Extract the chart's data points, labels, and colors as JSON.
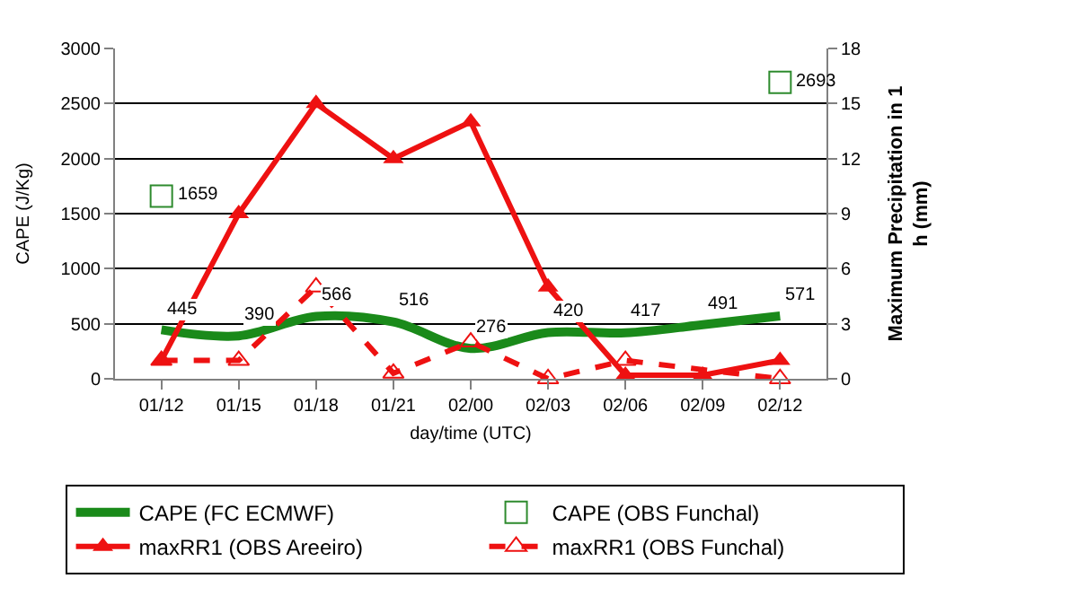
{
  "chart_data": {
    "type": "line",
    "xlabel": "day/time (UTC)",
    "ylabel": "CAPE (J/Kg)",
    "y2label": "Maximum Precipitation in 1 h (mm)",
    "categories": [
      "01/12",
      "01/15",
      "01/18",
      "01/21",
      "02/00",
      "02/03",
      "02/06",
      "02/09",
      "02/12"
    ],
    "series": [
      {
        "name": "CAPE (FC ECMWF)",
        "color": "#1a8a1a",
        "marker": "none",
        "line_style": "solid",
        "values": [
          445,
          390,
          566,
          516,
          276,
          420,
          417,
          491,
          571
        ],
        "value_labels": [
          "445",
          "390",
          "566",
          "516",
          "276",
          "420",
          "417",
          "491",
          "571"
        ]
      },
      {
        "name": "CAPE (OBS Funchal)",
        "type": "scatter",
        "color": "#2e8b2e",
        "marker": "square",
        "values": [
          1659,
          null,
          null,
          null,
          null,
          null,
          null,
          null,
          2693
        ],
        "value_labels": [
          "1659",
          null,
          null,
          null,
          null,
          null,
          null,
          null,
          "2693"
        ]
      },
      {
        "name": "maxRR1 (OBS Areeiro)",
        "axis": "y2",
        "color": "#ee1111",
        "marker": "triangle",
        "line_style": "solid",
        "values": [
          1,
          9,
          15,
          12,
          14,
          5,
          0.2,
          0.2,
          1
        ]
      },
      {
        "name": "maxRR1 (OBS Funchal)",
        "type": "line",
        "axis": "y2",
        "color": "#ee1111",
        "marker": "triangle",
        "line_style": "dashed",
        "values": [
          1,
          1,
          5,
          0.3,
          2,
          0,
          1,
          null,
          0
        ]
      }
    ],
    "ylim": [
      0,
      3000
    ],
    "yticks": [
      0,
      500,
      1000,
      1500,
      2000,
      2500,
      3000
    ],
    "y2lim": [
      0,
      18
    ],
    "y2ticks": [
      0,
      3,
      6,
      9,
      12,
      15,
      18
    ],
    "grid": "y",
    "legend": "bottom"
  }
}
